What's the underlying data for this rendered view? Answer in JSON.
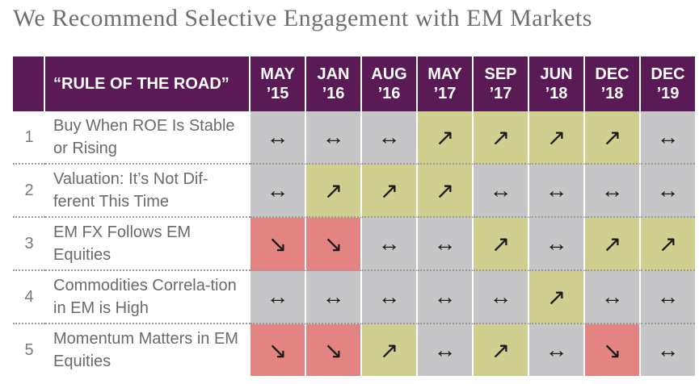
{
  "title": "We Recommend Selective Engagement with EM Markets",
  "header": {
    "rule_label": "“RULE OF THE ROAD”",
    "dates": [
      "MAY '15",
      "JAN '16",
      "AUG '16",
      "MAY '17",
      "SEP '17",
      "JUN '18",
      "DEC '18",
      "DEC '19"
    ],
    "dates_display": [
      [
        "MAY",
        "’15"
      ],
      [
        "JAN",
        "’16"
      ],
      [
        "AUG",
        "’16"
      ],
      [
        "MAY",
        "’17"
      ],
      [
        "SEP",
        "’17"
      ],
      [
        "JUN",
        "’18"
      ],
      [
        "DEC",
        "’18"
      ],
      [
        "DEC",
        "’19"
      ]
    ]
  },
  "symbols": {
    "neutral": "↔",
    "up": "↗",
    "down": "↘"
  },
  "colors": {
    "header_bg": "#5a1a55",
    "neutral": "#c6c6c8",
    "up": "#cfcf8f",
    "down": "#e48482"
  },
  "rows": [
    {
      "num": "1",
      "rule": "Buy When ROE Is Stable or Rising",
      "signals": [
        "neutral",
        "neutral",
        "neutral",
        "up",
        "up",
        "up",
        "up",
        "neutral"
      ]
    },
    {
      "num": "2",
      "rule": "Valuation: It’s Not Dif-ferent This Time",
      "signals": [
        "neutral",
        "up",
        "up",
        "up",
        "neutral",
        "neutral",
        "neutral",
        "neutral"
      ]
    },
    {
      "num": "3",
      "rule": "EM FX Follows EM Equities",
      "signals": [
        "down",
        "down",
        "neutral",
        "neutral",
        "up",
        "neutral",
        "up",
        "up"
      ]
    },
    {
      "num": "4",
      "rule": "Commodities Correla-tion in EM is High",
      "signals": [
        "neutral",
        "neutral",
        "neutral",
        "neutral",
        "neutral",
        "up",
        "neutral",
        "neutral"
      ]
    },
    {
      "num": "5",
      "rule": "Momentum Matters in EM Equities",
      "signals": [
        "down",
        "down",
        "up",
        "neutral",
        "up",
        "neutral",
        "down",
        "neutral"
      ]
    }
  ]
}
